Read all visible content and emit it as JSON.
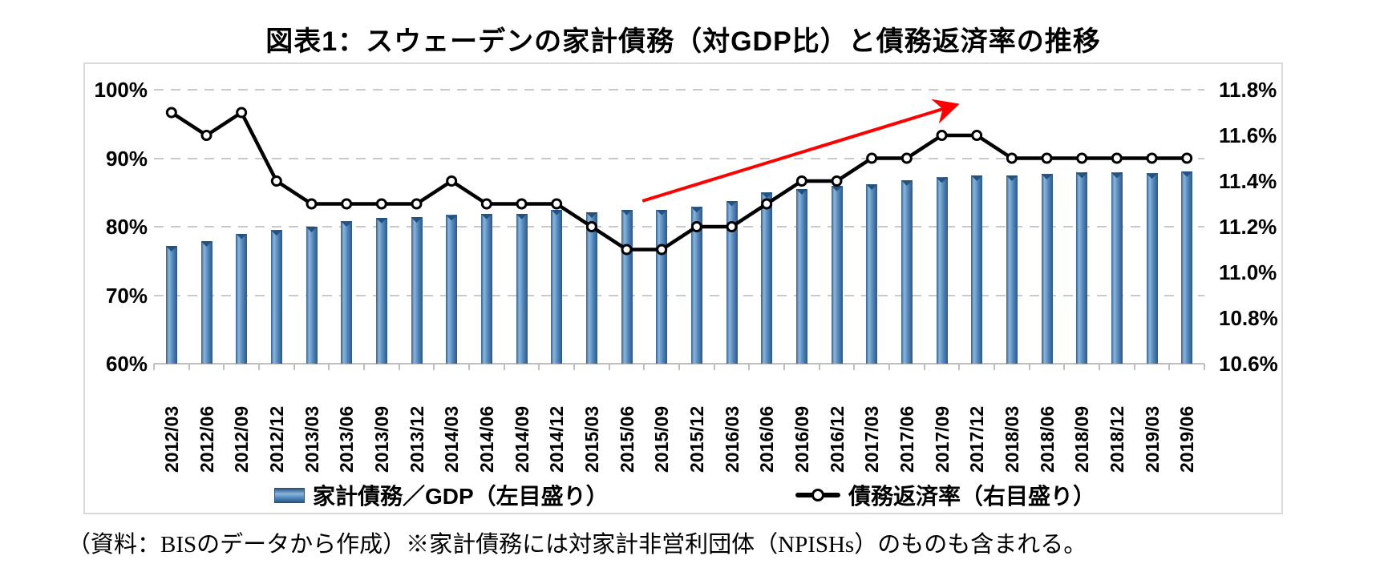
{
  "title": "図表1：スウェーデンの家計債務（対GDP比）と債務返済率の推移",
  "caption": "（資料：BISのデータから作成）※家計債務には対家計非営利団体（NPISHs）のものも含まれる。",
  "legend": {
    "bars": "家計債務／GDP（左目盛り）",
    "line": "債務返済率（右目盛り）"
  },
  "colors": {
    "bar_main": "#4f81bd",
    "bar_light": "#8ab5db",
    "bar_dark": "#2d5884",
    "line": "#000000",
    "marker_fill": "#ffffff",
    "arrow": "#ff0000",
    "grid": "#c9c9c9",
    "frame_border": "#d9d9d9"
  },
  "chart_data": {
    "type": "bar",
    "subtype": "bar+line combo, dual axis",
    "categories": [
      "2012/03",
      "2012/06",
      "2012/09",
      "2012/12",
      "2013/03",
      "2013/06",
      "2013/09",
      "2013/12",
      "2014/03",
      "2014/06",
      "2014/09",
      "2014/12",
      "2015/03",
      "2015/06",
      "2015/09",
      "2015/12",
      "2016/03",
      "2016/06",
      "2016/09",
      "2016/12",
      "2017/03",
      "2017/06",
      "2017/09",
      "2017/12",
      "2018/03",
      "2018/06",
      "2018/09",
      "2018/12",
      "2019/03",
      "2019/06"
    ],
    "series": [
      {
        "name": "家計債務／GDP（左目盛り）",
        "type": "bar",
        "axis": "left",
        "values": [
          77.2,
          77.9,
          79.0,
          79.5,
          80.0,
          80.8,
          81.3,
          81.4,
          81.7,
          81.9,
          81.9,
          82.5,
          82.1,
          82.5,
          82.5,
          82.9,
          83.8,
          85.0,
          85.5,
          86.0,
          86.2,
          86.8,
          87.2,
          87.5,
          87.5,
          87.7,
          87.9,
          87.9,
          87.8,
          88.1
        ]
      },
      {
        "name": "債務返済率（右目盛り）",
        "type": "line",
        "axis": "right",
        "values": [
          11.7,
          11.6,
          11.7,
          11.4,
          11.3,
          11.3,
          11.3,
          11.3,
          11.4,
          11.3,
          11.3,
          11.3,
          11.2,
          11.1,
          11.1,
          11.2,
          11.2,
          11.3,
          11.4,
          11.4,
          11.5,
          11.5,
          11.6,
          11.6,
          11.5,
          11.5,
          11.5,
          11.5,
          11.5,
          11.5
        ]
      }
    ],
    "left_axis": {
      "min": 60,
      "max": 100,
      "ticks": [
        "100%",
        "90%",
        "80%",
        "70%",
        "60%"
      ],
      "tick_values": [
        100,
        90,
        80,
        70,
        60
      ]
    },
    "right_axis": {
      "min": 10.6,
      "max": 11.8,
      "ticks": [
        "11.8%",
        "11.6%",
        "11.4%",
        "11.2%",
        "11.0%",
        "10.8%",
        "10.6%"
      ],
      "tick_values": [
        11.8,
        11.6,
        11.4,
        11.2,
        11.0,
        10.8,
        10.6
      ]
    },
    "grid": "horizontal dashed",
    "legend_position": "bottom",
    "annotation": {
      "type": "arrow",
      "color": "#ff0000",
      "x1_frac": 0.465,
      "y1_frac": 0.406,
      "x2_frac": 0.764,
      "y2_frac": 0.055
    }
  }
}
